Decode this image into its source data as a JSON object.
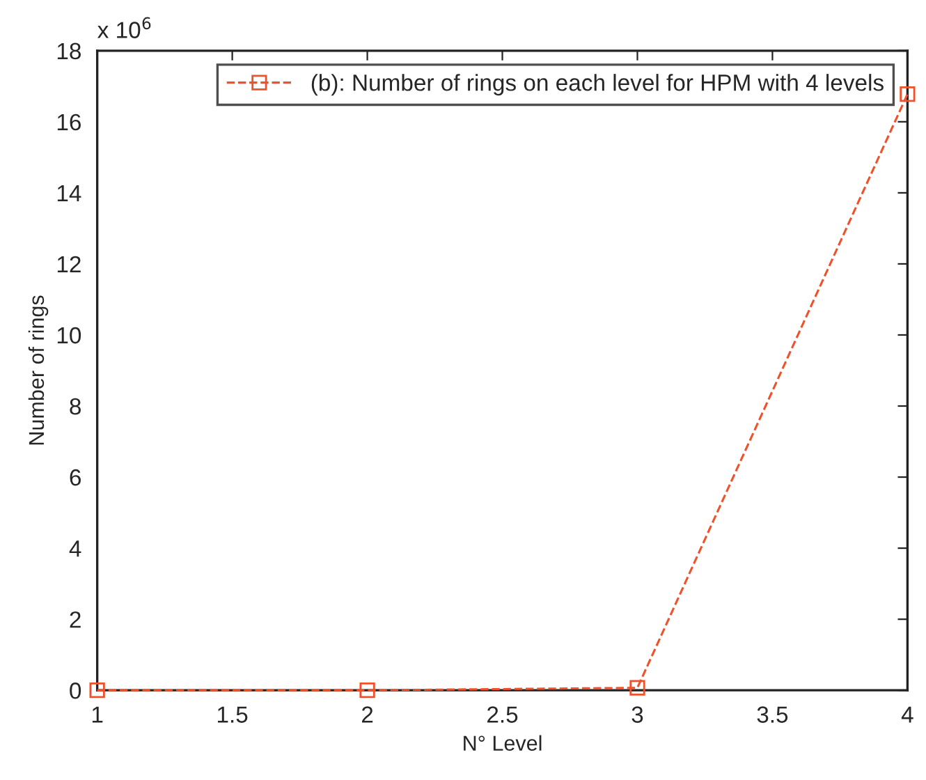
{
  "chart_data": {
    "type": "line",
    "xlabel": "N° Level",
    "ylabel": "Number of rings",
    "annotations": [
      "x 10$^{6}$"
    ],
    "x": [
      1,
      2,
      3,
      4
    ],
    "series": [
      {
        "name": "(b): Number of rings on each level for HPM with 4 levels",
        "color": "#f0502a",
        "values": [
          0,
          0,
          0.07,
          16.78
        ]
      }
    ],
    "xlim": [
      1,
      4
    ],
    "xticks": [
      1,
      1.5,
      2,
      2.5,
      3,
      3.5,
      4
    ],
    "ylim": [
      0,
      18
    ],
    "yticks": [
      0,
      2,
      4,
      6,
      8,
      10,
      12,
      14,
      16,
      18
    ],
    "grid": false,
    "legend": "top right",
    "marker": "square",
    "line_style": "dashed"
  }
}
